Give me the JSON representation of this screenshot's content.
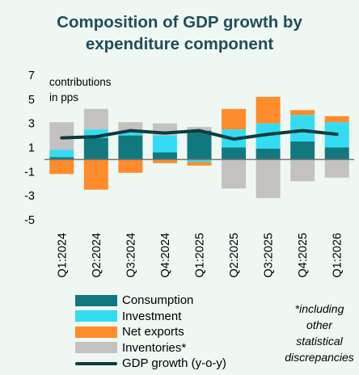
{
  "title_line1": "Composition of GDP growth by",
  "title_line2": "expenditure component",
  "unit_line1": "contributions",
  "unit_line2": "in pps",
  "note_lines": [
    "*including",
    "other",
    "statistical",
    "discrepancies"
  ],
  "colors": {
    "consumption": "#127880",
    "investment": "#33dcf2",
    "net_exports": "#ff8b2a",
    "inventories": "#c3c2c0",
    "gdp_line": "#0d3b3f",
    "zero_line": "#777777"
  },
  "chart_data": {
    "type": "bar",
    "stacked": true,
    "categories": [
      "Q1:2024",
      "Q2:2024",
      "Q3:2024",
      "Q4:2024",
      "Q1:2025",
      "Q2:2025",
      "Q3:2025",
      "Q4:2025",
      "Q1:2026"
    ],
    "ylim": [
      -5,
      7
    ],
    "yticks": [
      7,
      5,
      3,
      1,
      -1,
      -3,
      -5
    ],
    "ytick_labels": [
      "7",
      "5",
      "3",
      "1",
      "-1",
      "-3",
      "-5"
    ],
    "series": [
      {
        "name": "Consumption",
        "values": [
          0.2,
          1.8,
          2.0,
          0.6,
          2.4,
          1.0,
          0.9,
          1.5,
          1.0
        ]
      },
      {
        "name": "Investment",
        "values": [
          0.6,
          0.7,
          0.3,
          1.4,
          -0.2,
          1.5,
          2.1,
          2.2,
          2.1
        ]
      },
      {
        "name": "Net exports",
        "values": [
          -1.2,
          -2.5,
          -1.1,
          -0.3,
          -0.3,
          1.7,
          2.2,
          0.4,
          0.5
        ]
      },
      {
        "name": "Inventories*",
        "values": [
          2.3,
          1.7,
          0.8,
          1.0,
          0.3,
          -2.4,
          -3.2,
          -1.8,
          -1.5
        ]
      }
    ],
    "line": {
      "name": "GDP growth (y-o-y)",
      "values": [
        1.8,
        1.9,
        2.4,
        2.2,
        2.4,
        1.7,
        2.1,
        2.4,
        2.1
      ]
    }
  }
}
